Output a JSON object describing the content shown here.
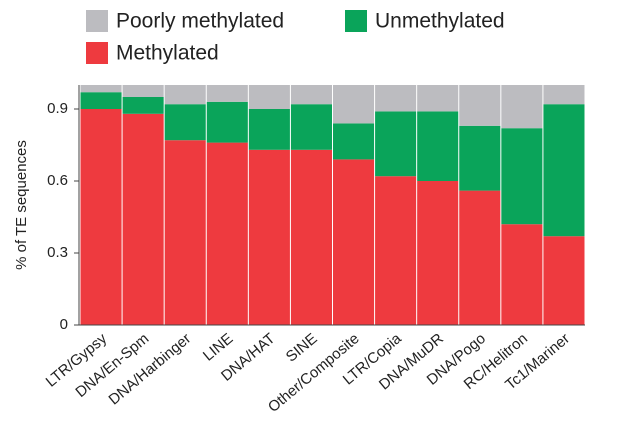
{
  "chart_data": {
    "type": "stacked_bar",
    "y_label": "% of TE sequences",
    "categories": [
      "LTR/Gypsy",
      "DNA/En-Spm",
      "DNA/Harbinger",
      "LINE",
      "DNA/HAT",
      "SINE",
      "Other/Composite",
      "LTR/Copia",
      "DNA/MuDR",
      "DNA/Pogo",
      "RC/Helitron",
      "Tc1/Mariner"
    ],
    "series": [
      {
        "name": "Methylated",
        "color": "#ee3a3f",
        "values": [
          0.9,
          0.88,
          0.77,
          0.76,
          0.73,
          0.73,
          0.69,
          0.62,
          0.6,
          0.56,
          0.42,
          0.37
        ]
      },
      {
        "name": "Unmethylated",
        "color": "#0aa45a",
        "values": [
          0.07,
          0.07,
          0.15,
          0.17,
          0.17,
          0.19,
          0.15,
          0.27,
          0.29,
          0.27,
          0.4,
          0.55
        ]
      },
      {
        "name": "Poorly methylated",
        "color": "#bcbcc0",
        "values": [
          0.03,
          0.05,
          0.08,
          0.07,
          0.1,
          0.08,
          0.16,
          0.11,
          0.11,
          0.17,
          0.18,
          0.08
        ]
      }
    ],
    "ylim": [
      0,
      1
    ],
    "yticks": [
      0,
      0.3,
      0.6,
      0.9
    ]
  }
}
